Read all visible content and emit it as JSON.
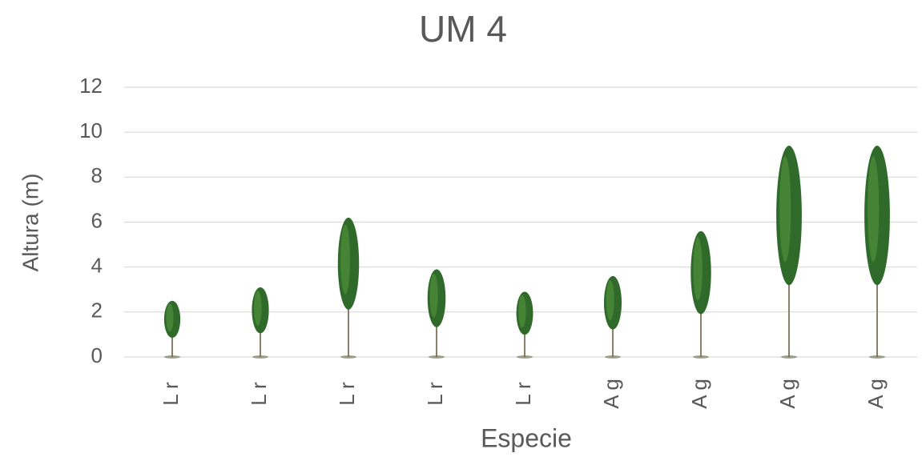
{
  "chart_data": {
    "type": "bar",
    "title": "UM 4",
    "x_label": "Especie",
    "y_label": "Altura (m)",
    "categories": [
      "L r",
      "L r",
      "L r",
      "L r",
      "L r",
      "A g",
      "A g",
      "A g",
      "A g"
    ],
    "values": [
      2.5,
      3.1,
      6.2,
      3.9,
      2.9,
      3.6,
      5.6,
      9.4,
      9.4
    ],
    "color": "#2f6a2b",
    "ylim": [
      0,
      12
    ],
    "yticks": [
      0,
      2,
      4,
      6,
      8,
      10,
      12
    ],
    "grid": true
  }
}
